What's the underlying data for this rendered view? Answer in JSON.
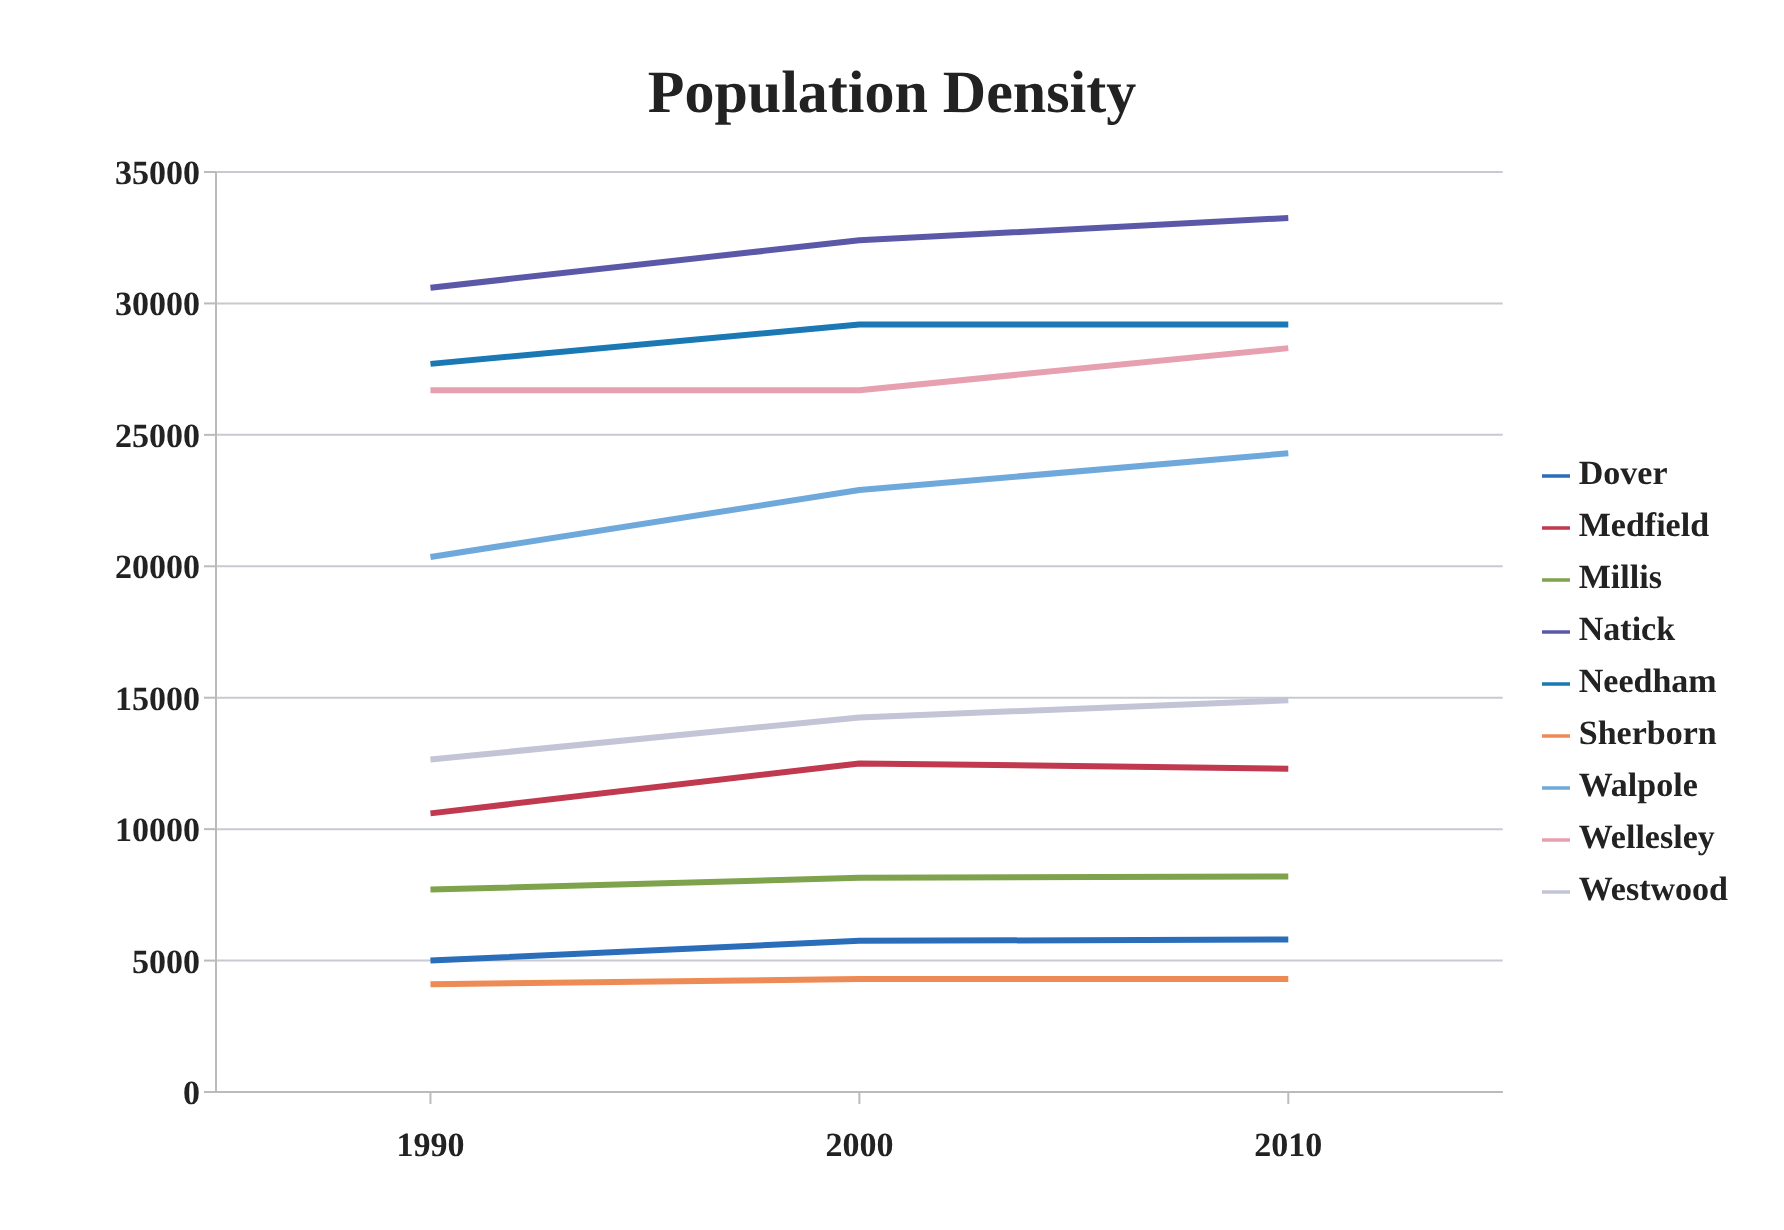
{
  "chart_data": {
    "type": "line",
    "title": "Population Density",
    "categories": [
      "1990",
      "2000",
      "2010"
    ],
    "series": [
      {
        "name": "Dover",
        "color": "#2a6ebb",
        "values": [
          5000,
          5750,
          5800
        ]
      },
      {
        "name": "Medfield",
        "color": "#c0394f",
        "values": [
          10600,
          12500,
          12300
        ]
      },
      {
        "name": "Millis",
        "color": "#7ea34c",
        "values": [
          7700,
          8150,
          8200
        ]
      },
      {
        "name": "Natick",
        "color": "#5b58a8",
        "values": [
          30600,
          32400,
          33250
        ]
      },
      {
        "name": "Needham",
        "color": "#1a78b5",
        "values": [
          27700,
          29200,
          29200
        ]
      },
      {
        "name": "Sherborn",
        "color": "#ee8a55",
        "values": [
          4100,
          4300,
          4300
        ]
      },
      {
        "name": "Walpole",
        "color": "#6fa9dc",
        "values": [
          20350,
          22900,
          24300
        ]
      },
      {
        "name": "Wellesley",
        "color": "#e7a0b0",
        "values": [
          26700,
          26700,
          28300
        ]
      },
      {
        "name": "Westwood",
        "color": "#c3c4d6",
        "values": [
          12650,
          14250,
          14900
        ]
      }
    ],
    "ylim": [
      0,
      35000
    ],
    "yticks": [
      0,
      5000,
      10000,
      15000,
      20000,
      25000,
      30000,
      35000
    ],
    "grid": "y",
    "legend": "right",
    "marker": "none",
    "line_style": "solid"
  }
}
